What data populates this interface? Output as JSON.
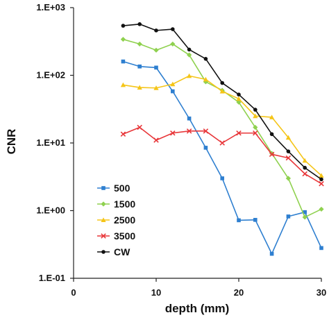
{
  "chart_data": {
    "type": "line",
    "xlabel": "depth (mm)",
    "ylabel": "CNR",
    "xlim": [
      0,
      30
    ],
    "ylim": [
      0.1,
      1000
    ],
    "y_scale": "log",
    "x_ticks": [
      0,
      10,
      20,
      30
    ],
    "y_ticks": [
      {
        "value": 1000,
        "label": "1.E+03"
      },
      {
        "value": 100,
        "label": "1.E+02"
      },
      {
        "value": 10,
        "label": "1.E+01"
      },
      {
        "value": 1,
        "label": "1.E+00"
      },
      {
        "value": 0.1,
        "label": "1.E-01"
      }
    ],
    "grid": false,
    "legend_position": "bottom-left",
    "x": [
      6,
      8,
      10,
      12,
      14,
      16,
      18,
      20,
      22,
      24,
      26,
      28,
      30
    ],
    "series": [
      {
        "name": "500",
        "color": "#2e7fd0",
        "marker": "square",
        "values": [
          160,
          135,
          130,
          58,
          23,
          8.5,
          3.0,
          0.72,
          0.73,
          0.23,
          0.82,
          0.95,
          0.28
        ]
      },
      {
        "name": "1500",
        "color": "#8fd14f",
        "marker": "diamond",
        "values": [
          340,
          290,
          235,
          290,
          200,
          80,
          60,
          40,
          17,
          7.0,
          3.0,
          0.8,
          1.05
        ]
      },
      {
        "name": "2500",
        "color": "#f5c518",
        "marker": "triangle",
        "values": [
          72,
          66,
          65,
          74,
          98,
          87,
          58,
          45,
          25,
          24,
          12,
          5.5,
          3.3
        ]
      },
      {
        "name": "3500",
        "color": "#e8373a",
        "marker": "x",
        "values": [
          13.5,
          17,
          11,
          14,
          15,
          15,
          10,
          14,
          14,
          6.8,
          6.0,
          3.5,
          2.5
        ]
      },
      {
        "name": "CW",
        "color": "#111111",
        "marker": "circle",
        "values": [
          540,
          570,
          460,
          480,
          240,
          175,
          77,
          52,
          31,
          13.5,
          7.5,
          4.3,
          2.9
        ]
      }
    ]
  }
}
